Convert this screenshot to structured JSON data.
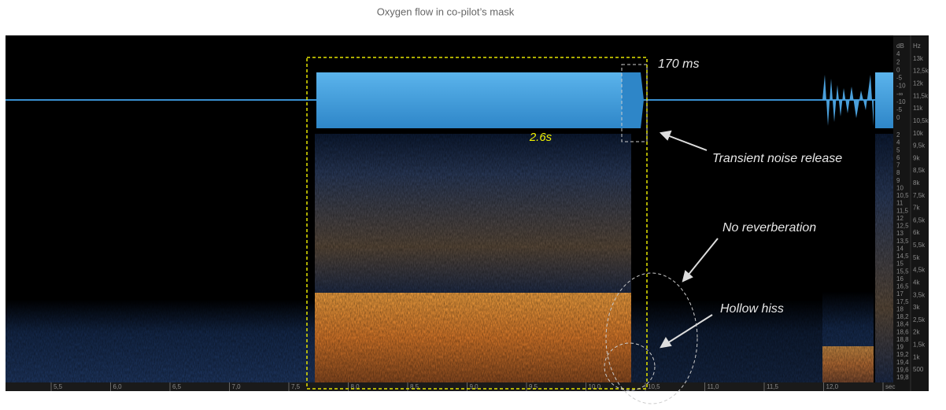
{
  "title": "Oxygen flow in co-pilot’s mask",
  "annotations": {
    "release_time": "170 ms",
    "duration": "2.6s",
    "transient": "Transient noise release",
    "reverberation": "No reverberation",
    "hiss": "Hollow hiss"
  },
  "time_axis": [
    "5,5",
    "6,0",
    "6,5",
    "7,0",
    "7,5",
    "8,0",
    "8,5",
    "9,0",
    "9,5",
    "10,0",
    "10,5",
    "11,0",
    "11,5",
    "12,0",
    "sec"
  ],
  "db_scale_waveform": [
    "dB",
    "4",
    "2",
    "0",
    "-5",
    "-10",
    "-∞",
    "-10",
    "-5",
    "0"
  ],
  "db_scale_spectrum": [
    "2",
    "4",
    "5",
    "6",
    "7",
    "8",
    "9",
    "10",
    "10,5",
    "11",
    "11,5",
    "12",
    "12,5",
    "13",
    "13,5",
    "14",
    "14,5",
    "15",
    "15,5",
    "16",
    "16,5",
    "17",
    "17,5",
    "18",
    "18,2",
    "18,4",
    "18,6",
    "18,8",
    "19",
    "19,2",
    "19,4",
    "19,6",
    "19,8"
  ],
  "hz_scale": [
    "Hz",
    "13k",
    "12,5k",
    "12k",
    "11,5k",
    "11k",
    "10,5k",
    "10k",
    "9,5k",
    "9k",
    "8,5k",
    "8k",
    "7,5k",
    "7k",
    "6,5k",
    "6k",
    "5,5k",
    "5k",
    "4,5k",
    "4k",
    "3,5k",
    "3k",
    "2,5k",
    "2k",
    "1,5k",
    "1k",
    "500"
  ]
}
